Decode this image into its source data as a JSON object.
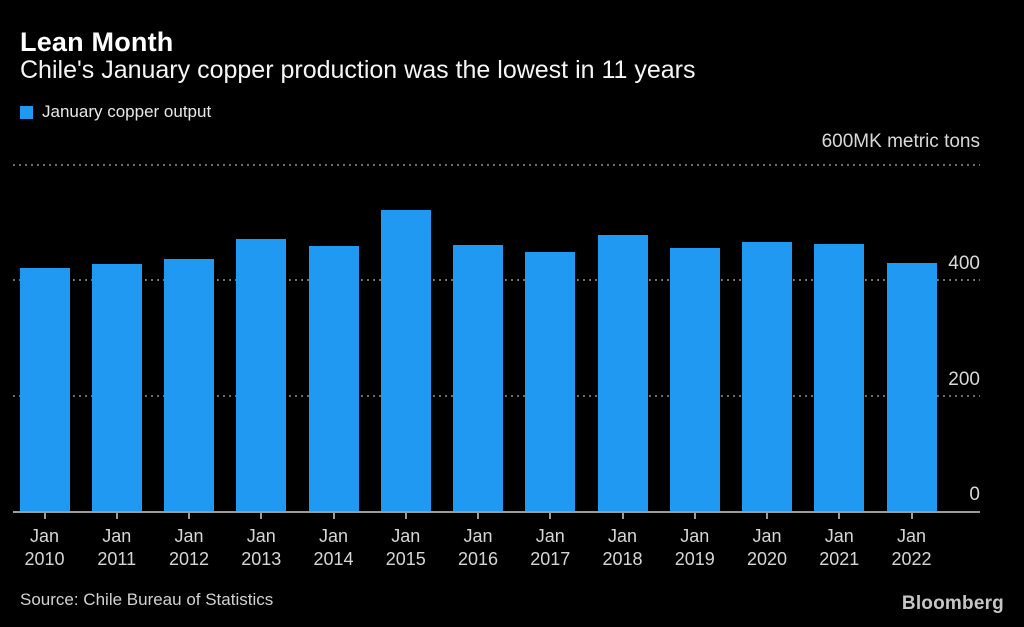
{
  "header": {
    "title": "Lean Month",
    "subtitle": "Chile's January copper production was the lowest in 11 years"
  },
  "legend": {
    "label": "January copper output"
  },
  "y_axis": {
    "top_label": "600MK metric tons"
  },
  "chart_data": {
    "type": "bar",
    "title": "Lean Month",
    "subtitle": "Chile's January copper production was the lowest in 11 years",
    "legend": [
      "January copper output"
    ],
    "categories": [
      "Jan 2010",
      "Jan 2011",
      "Jan 2012",
      "Jan 2013",
      "Jan 2014",
      "Jan 2015",
      "Jan 2016",
      "Jan 2017",
      "Jan 2018",
      "Jan 2019",
      "Jan 2020",
      "Jan 2021",
      "Jan 2022"
    ],
    "values": [
      421,
      428,
      437,
      472,
      460,
      522,
      461,
      449,
      478,
      456,
      466,
      463,
      430
    ],
    "unit": "K metric tons",
    "ylabel": "K metric tons",
    "ylim": [
      0,
      600
    ],
    "yticks": [
      600,
      400,
      200,
      0
    ],
    "grid": "horizontal-dotted",
    "legend_position": "top-left",
    "axis_label_side": "right"
  },
  "footer": {
    "source": "Source: Chile Bureau of Statistics",
    "brand": "Bloomberg"
  },
  "colors": {
    "background": "#000000",
    "bar": "#2099f2",
    "title_text": "#ffffff",
    "axis_text": "#d9d9d9",
    "gridline": "#6e6e6e",
    "axis_line": "#9b9b9b"
  }
}
